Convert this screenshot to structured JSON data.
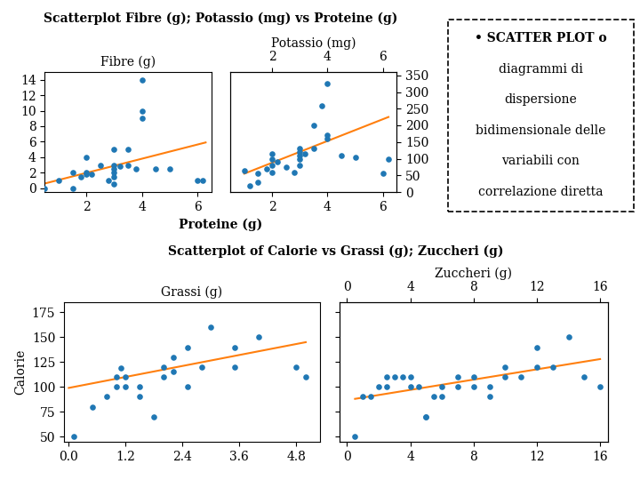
{
  "chart_data": [
    {
      "title": "Scatterplot Fibre (g); Potassio (mg) vs Proteine (g)",
      "xlabel": "Proteine (g)",
      "panels": [
        {
          "type": "scatter",
          "title": "Fibre (g)",
          "xlim": [
            0.5,
            6.5
          ],
          "xticks": [
            2,
            4,
            6
          ],
          "ylim": [
            -0.5,
            15
          ],
          "yticks": [
            0,
            2,
            4,
            6,
            8,
            10,
            12,
            14
          ],
          "series": [
            {
              "type": "scatter",
              "x": [
                0.5,
                1.0,
                1.5,
                1.5,
                1.8,
                2.0,
                2.0,
                2.0,
                2.2,
                2.5,
                2.8,
                3.0,
                3.0,
                3.0,
                3.0,
                3.0,
                3.0,
                3.2,
                3.5,
                3.5,
                3.8,
                4.0,
                4.0,
                4.0,
                4.5,
                5.0,
                6.0,
                6.2
              ],
              "values": [
                0.0,
                1.0,
                0.0,
                2.0,
                1.5,
                1.8,
                2.0,
                4.0,
                1.8,
                3.0,
                1.0,
                0.5,
                1.5,
                2.0,
                2.5,
                3.0,
                5.0,
                2.8,
                3.0,
                5.0,
                2.5,
                10.0,
                9.0,
                14.0,
                2.5,
                2.5,
                1.0,
                1.0
              ]
            },
            {
              "type": "line",
              "x": [
                0.5,
                6.3
              ],
              "values": [
                0.6,
                5.9
              ]
            }
          ]
        },
        {
          "type": "scatter",
          "title": "Potassio (mg)",
          "xlim": [
            0.5,
            6.5
          ],
          "xticks": [
            2,
            4,
            6
          ],
          "x2lim": [
            0.5,
            6.5
          ],
          "x2ticks": [
            2,
            4,
            6
          ],
          "ylim": [
            0,
            360
          ],
          "yticks": [
            0,
            50,
            100,
            150,
            200,
            250,
            300,
            350
          ],
          "series": [
            {
              "type": "scatter",
              "x": [
                1.0,
                1.2,
                1.5,
                1.5,
                1.8,
                2.0,
                2.0,
                2.0,
                2.0,
                2.2,
                2.5,
                2.8,
                3.0,
                3.0,
                3.0,
                3.0,
                3.0,
                3.2,
                3.5,
                3.5,
                3.8,
                4.0,
                4.0,
                4.0,
                4.5,
                5.0,
                6.0,
                6.2
              ],
              "values": [
                65,
                20,
                30,
                55,
                70,
                60,
                80,
                100,
                115,
                90,
                75,
                60,
                80,
                100,
                110,
                120,
                130,
                115,
                130,
                200,
                260,
                160,
                170,
                325,
                110,
                105,
                55,
                100
              ]
            },
            {
              "type": "line",
              "x": [
                1.0,
                6.2
              ],
              "values": [
                55,
                225
              ]
            }
          ]
        }
      ]
    },
    {
      "title": "Scatterplot of Calorie vs Grassi (g); Zuccheri (g)",
      "ylabel": "Calorie",
      "panels": [
        {
          "type": "scatter",
          "title": "Grassi (g)",
          "xlim": [
            -0.1,
            5.3
          ],
          "xticks": [
            0.0,
            1.2,
            2.4,
            3.6,
            4.8
          ],
          "ylim": [
            45,
            185
          ],
          "yticks": [
            50,
            75,
            100,
            125,
            150,
            175
          ],
          "series": [
            {
              "type": "scatter",
              "x": [
                0.1,
                0.5,
                0.8,
                1.0,
                1.0,
                1.1,
                1.2,
                1.2,
                1.5,
                1.5,
                1.8,
                2.0,
                2.0,
                2.2,
                2.2,
                2.5,
                2.5,
                2.8,
                3.0,
                3.5,
                3.5,
                4.0,
                4.8,
                5.0
              ],
              "values": [
                50,
                80,
                90,
                100,
                110,
                119,
                100,
                110,
                90,
                100,
                70,
                110,
                120,
                115,
                130,
                140,
                100,
                120,
                160,
                140,
                120,
                150,
                120,
                110
              ]
            },
            {
              "type": "line",
              "x": [
                0.0,
                5.0
              ],
              "values": [
                99,
                145
              ]
            }
          ]
        },
        {
          "type": "scatter",
          "title": "Zuccheri (g)",
          "tick_labels": "x",
          "xlim": [
            -0.5,
            16.5
          ],
          "xticks": [
            0,
            4,
            8,
            12,
            16
          ],
          "x2lim": [
            -0.5,
            16.5
          ],
          "x2ticks": [
            0,
            4,
            8,
            12,
            16
          ],
          "ylim": [
            45,
            185
          ],
          "yticks": [
            50,
            75,
            100,
            125,
            150,
            175
          ],
          "series": [
            {
              "type": "scatter",
              "x": [
                0.5,
                1.0,
                1.5,
                2.0,
                2.5,
                2.5,
                3.0,
                3.5,
                4.0,
                4.0,
                4.5,
                5.0,
                5.0,
                5.5,
                6.0,
                6.0,
                7.0,
                7.0,
                8.0,
                8.0,
                9.0,
                9.0,
                10.0,
                10.0,
                11.0,
                12.0,
                12.0,
                13.0,
                14.0,
                15.0,
                16.0
              ],
              "values": [
                50,
                90,
                90,
                100,
                100,
                110,
                110,
                110,
                110,
                100,
                100,
                70,
                70,
                90,
                90,
                100,
                110,
                100,
                100,
                110,
                90,
                100,
                110,
                120,
                110,
                120,
                140,
                120,
                150,
                110,
                100
              ]
            },
            {
              "type": "line",
              "x": [
                0.5,
                16.0
              ],
              "values": [
                88,
                128
              ]
            }
          ]
        }
      ]
    }
  ],
  "annotations": [
    "• SCATTER PLOT o",
    "diagrammi di",
    "dispersione",
    "bidimensionale delle",
    "variabili con",
    "correlazione diretta"
  ]
}
